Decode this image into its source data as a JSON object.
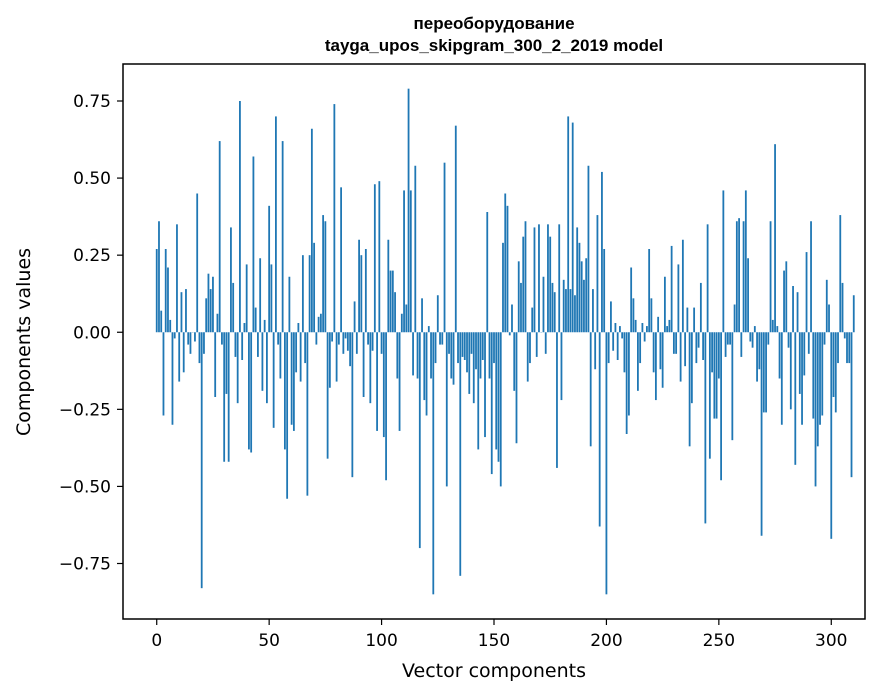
{
  "colors": {
    "bar": "#1f77b4",
    "axis": "#000000",
    "background": "#ffffff"
  },
  "chart_data": {
    "type": "bar",
    "title_line1": "переоборудование",
    "title_line2": "tayga_upos_skipgram_300_2_2019 model",
    "xlabel": "Vector components",
    "ylabel": "Components values",
    "xlim": [
      -15,
      315
    ],
    "ylim": [
      -0.93,
      0.87
    ],
    "xticks": [
      0,
      50,
      100,
      150,
      200,
      250,
      300
    ],
    "yticks": [
      -0.75,
      -0.5,
      -0.25,
      0.0,
      0.25,
      0.5,
      0.75
    ],
    "ytick_labels": [
      "−0.75",
      "−0.50",
      "−0.25",
      "0.00",
      "0.25",
      "0.50",
      "0.75"
    ],
    "xtick_labels": [
      "0",
      "50",
      "100",
      "150",
      "200",
      "250",
      "300"
    ],
    "grid": false,
    "bar_width": 0.8,
    "values": [
      0.27,
      0.36,
      0.07,
      -0.27,
      0.27,
      0.21,
      0.04,
      -0.3,
      -0.02,
      0.35,
      -0.16,
      0.13,
      -0.13,
      0.14,
      -0.04,
      -0.07,
      0.0,
      -0.03,
      0.45,
      -0.1,
      -0.83,
      -0.07,
      0.11,
      0.19,
      0.14,
      0.18,
      -0.21,
      0.06,
      0.62,
      -0.04,
      -0.42,
      -0.2,
      -0.42,
      0.34,
      0.16,
      -0.08,
      -0.23,
      0.75,
      -0.09,
      0.03,
      0.22,
      -0.38,
      -0.39,
      0.57,
      0.08,
      -0.08,
      0.24,
      -0.19,
      0.04,
      -0.23,
      0.41,
      0.22,
      -0.31,
      0.7,
      -0.04,
      -0.15,
      0.62,
      -0.38,
      -0.54,
      0.18,
      -0.3,
      -0.32,
      -0.13,
      0.03,
      -0.16,
      0.25,
      -0.1,
      -0.53,
      0.25,
      0.66,
      0.29,
      -0.04,
      0.05,
      0.06,
      0.38,
      0.36,
      -0.41,
      -0.18,
      -0.03,
      0.74,
      -0.16,
      -0.04,
      0.47,
      -0.07,
      -0.02,
      -0.06,
      -0.11,
      -0.47,
      0.1,
      -0.07,
      0.3,
      0.25,
      -0.21,
      0.27,
      -0.04,
      -0.23,
      -0.06,
      0.48,
      -0.32,
      0.49,
      -0.07,
      -0.34,
      -0.48,
      0.3,
      0.2,
      0.2,
      0.13,
      -0.15,
      -0.32,
      0.06,
      0.46,
      0.09,
      0.79,
      0.46,
      -0.14,
      0.54,
      -0.15,
      -0.7,
      0.11,
      -0.22,
      -0.27,
      0.02,
      -0.15,
      -0.85,
      -0.1,
      0.12,
      -0.04,
      -0.04,
      0.55,
      -0.5,
      -0.07,
      -0.15,
      -0.17,
      0.67,
      -0.1,
      -0.79,
      -0.08,
      -0.09,
      -0.13,
      -0.2,
      -0.07,
      -0.23,
      -0.12,
      -0.38,
      -0.15,
      -0.09,
      -0.34,
      0.39,
      -0.15,
      -0.46,
      -0.1,
      -0.38,
      -0.42,
      -0.5,
      0.29,
      0.45,
      0.41,
      -0.01,
      0.09,
      -0.19,
      -0.36,
      0.23,
      0.16,
      0.31,
      0.36,
      -0.16,
      -0.1,
      0.08,
      0.34,
      -0.08,
      0.35,
      0.0,
      0.18,
      -0.07,
      0.35,
      0.31,
      0.16,
      0.13,
      -0.44,
      0.35,
      -0.22,
      0.17,
      0.14,
      0.7,
      0.14,
      0.68,
      0.12,
      0.34,
      0.29,
      0.23,
      0.17,
      0.24,
      0.54,
      -0.37,
      0.14,
      -0.12,
      0.38,
      -0.63,
      0.52,
      0.27,
      -0.85,
      -0.1,
      0.1,
      -0.06,
      0.03,
      -0.09,
      0.02,
      -0.02,
      -0.13,
      -0.33,
      -0.27,
      0.21,
      0.11,
      0.04,
      -0.19,
      -0.1,
      0.03,
      -0.03,
      0.02,
      0.27,
      0.11,
      -0.13,
      -0.22,
      0.05,
      -0.12,
      -0.18,
      0.18,
      0.02,
      0.04,
      0.28,
      -0.07,
      -0.07,
      0.22,
      -0.16,
      0.3,
      -0.11,
      0.08,
      -0.37,
      -0.23,
      0.08,
      -0.1,
      -0.05,
      0.16,
      -0.09,
      -0.62,
      0.35,
      -0.41,
      -0.13,
      -0.28,
      -0.28,
      -0.15,
      -0.48,
      0.46,
      -0.08,
      -0.04,
      -0.04,
      -0.35,
      0.09,
      0.36,
      0.37,
      -0.08,
      0.36,
      0.46,
      0.24,
      -0.03,
      -0.05,
      0.02,
      -0.16,
      -0.12,
      -0.66,
      -0.26,
      -0.26,
      -0.04,
      0.36,
      0.04,
      0.61,
      0.02,
      -0.15,
      -0.3,
      0.2,
      0.23,
      -0.05,
      -0.25,
      0.15,
      -0.43,
      0.13,
      -0.2,
      -0.3,
      -0.14,
      0.26,
      -0.07,
      0.36,
      -0.28,
      -0.5,
      -0.37,
      -0.3,
      -0.27,
      -0.04,
      0.17,
      0.09,
      -0.67,
      -0.21,
      -0.26,
      -0.1,
      0.38,
      0.16,
      -0.02,
      -0.1,
      -0.1,
      -0.47,
      0.12
    ]
  }
}
